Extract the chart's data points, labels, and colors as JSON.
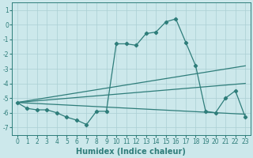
{
  "xlabel": "Humidex (Indice chaleur)",
  "xlim": [
    -0.5,
    23.5
  ],
  "ylim": [
    -7.5,
    1.5
  ],
  "yticks": [
    1,
    0,
    -1,
    -2,
    -3,
    -4,
    -5,
    -6,
    -7
  ],
  "xticks": [
    0,
    1,
    2,
    3,
    4,
    5,
    6,
    7,
    8,
    9,
    10,
    11,
    12,
    13,
    14,
    15,
    16,
    17,
    18,
    19,
    20,
    21,
    22,
    23
  ],
  "bg_color": "#cce8eb",
  "grid_color": "#aacfd4",
  "line_color": "#2e7d7a",
  "main_x": [
    0,
    1,
    2,
    3,
    4,
    5,
    6,
    7,
    8,
    9,
    10,
    11,
    12,
    13,
    14,
    15,
    16,
    17,
    18,
    19,
    20,
    21,
    22,
    23
  ],
  "main_y": [
    -5.3,
    -5.7,
    -5.8,
    -5.8,
    -6.0,
    -6.3,
    -6.5,
    -6.8,
    -5.9,
    -5.9,
    -1.3,
    -1.3,
    -1.4,
    -0.6,
    -0.5,
    0.2,
    0.4,
    -1.2,
    -2.8,
    -5.9,
    -6.0,
    -5.0,
    -4.5,
    -6.3
  ],
  "trend_lines": [
    {
      "x": [
        0,
        23
      ],
      "y": [
        -5.3,
        -2.8
      ]
    },
    {
      "x": [
        0,
        23
      ],
      "y": [
        -5.3,
        -4.0
      ]
    },
    {
      "x": [
        0,
        23
      ],
      "y": [
        -5.3,
        -6.1
      ]
    }
  ]
}
